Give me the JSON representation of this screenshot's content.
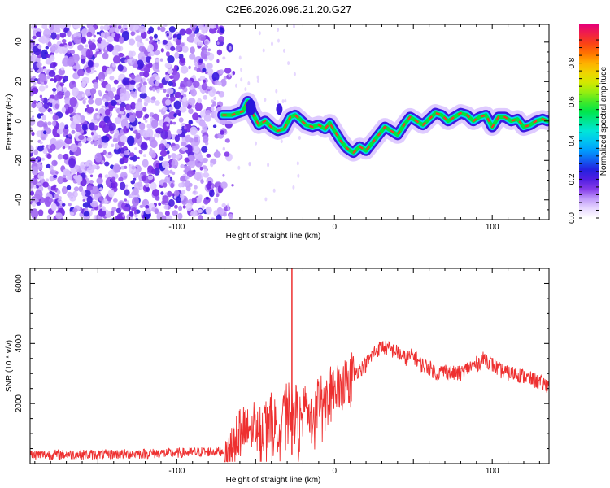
{
  "title": "C2E6.2026.096.21.20.G27",
  "chart_data": [
    {
      "type": "heatmap",
      "name": "spectrogram",
      "xlabel": "Height of straight line (km)",
      "ylabel": "Frequency (Hz)",
      "xlim": [
        -193,
        136
      ],
      "ylim": [
        -50,
        49
      ],
      "xticks": [
        -100,
        0,
        100
      ],
      "yticks": [
        -40,
        -20,
        0,
        20,
        40
      ],
      "noise_region_x": [
        -193,
        -68
      ],
      "ridge": {
        "x": [
          -71,
          -65,
          -58,
          -55,
          -52,
          -48,
          -44,
          -40,
          -36,
          -32,
          -28,
          -25,
          -22,
          -18,
          -14,
          -10,
          -6,
          -3,
          0,
          4,
          8,
          12,
          16,
          20,
          24,
          28,
          32,
          36,
          40,
          44,
          48,
          52,
          56,
          60,
          64,
          68,
          72,
          76,
          80,
          84,
          88,
          92,
          96,
          100,
          104,
          108,
          112,
          116,
          120,
          124,
          128,
          132,
          135
        ],
        "freq": [
          3,
          3,
          5,
          10,
          4,
          -2,
          0,
          -3,
          -5,
          -4,
          2,
          3,
          1,
          -2,
          -3,
          -2,
          -4,
          -1,
          -5,
          -10,
          -14,
          -16,
          -13,
          -15,
          -11,
          -7,
          -3,
          -5,
          -7,
          -2,
          2,
          0,
          -2,
          1,
          4,
          3,
          0,
          2,
          4,
          3,
          0,
          2,
          3,
          -3,
          2,
          2,
          0,
          1,
          -3,
          -2,
          0,
          1,
          0
        ]
      },
      "colorbar": {
        "label": "Normalized spectral amplitude",
        "range": [
          0.0,
          1.0
        ],
        "ticks": [
          0.0,
          0.2,
          0.4,
          0.6,
          0.8
        ],
        "tick_labels": [
          "0.0",
          "0.2",
          "0.4",
          "0.6",
          "0.8"
        ]
      }
    },
    {
      "type": "line",
      "name": "snr",
      "xlabel": "Height of straight line (km)",
      "ylabel": "SNR (10 * v/v)",
      "xlim": [
        -193,
        136
      ],
      "ylim": [
        0,
        6500
      ],
      "xticks": [
        -100,
        0,
        100
      ],
      "yticks": [
        2000,
        4000,
        6000
      ],
      "color": "#ee3030",
      "series": [
        {
          "name": "SNR",
          "x": [
            -193,
            -150,
            -100,
            -70,
            -65,
            -60,
            -55,
            -50,
            -45,
            -40,
            -35,
            -30,
            -27,
            -25,
            -22,
            -18,
            -15,
            -12,
            -10,
            -5,
            0,
            5,
            10,
            15,
            20,
            25,
            30,
            35,
            40,
            45,
            50,
            55,
            60,
            65,
            70,
            75,
            80,
            85,
            90,
            95,
            100,
            105,
            110,
            115,
            120,
            125,
            130,
            136
          ],
          "y": [
            300,
            300,
            350,
            420,
            700,
            1100,
            1000,
            1400,
            1200,
            1500,
            1200,
            2000,
            1800,
            1900,
            1400,
            1800,
            1500,
            1700,
            2200,
            2200,
            2500,
            2600,
            2900,
            3100,
            3300,
            3700,
            3900,
            3800,
            3700,
            3500,
            3600,
            3300,
            3200,
            3000,
            3100,
            3000,
            3000,
            3200,
            3300,
            3500,
            3300,
            3100,
            3000,
            3000,
            2900,
            2800,
            2700,
            2600
          ]
        }
      ],
      "annotations": [
        {
          "type": "spike",
          "x": -27,
          "y": 6500
        }
      ]
    }
  ]
}
